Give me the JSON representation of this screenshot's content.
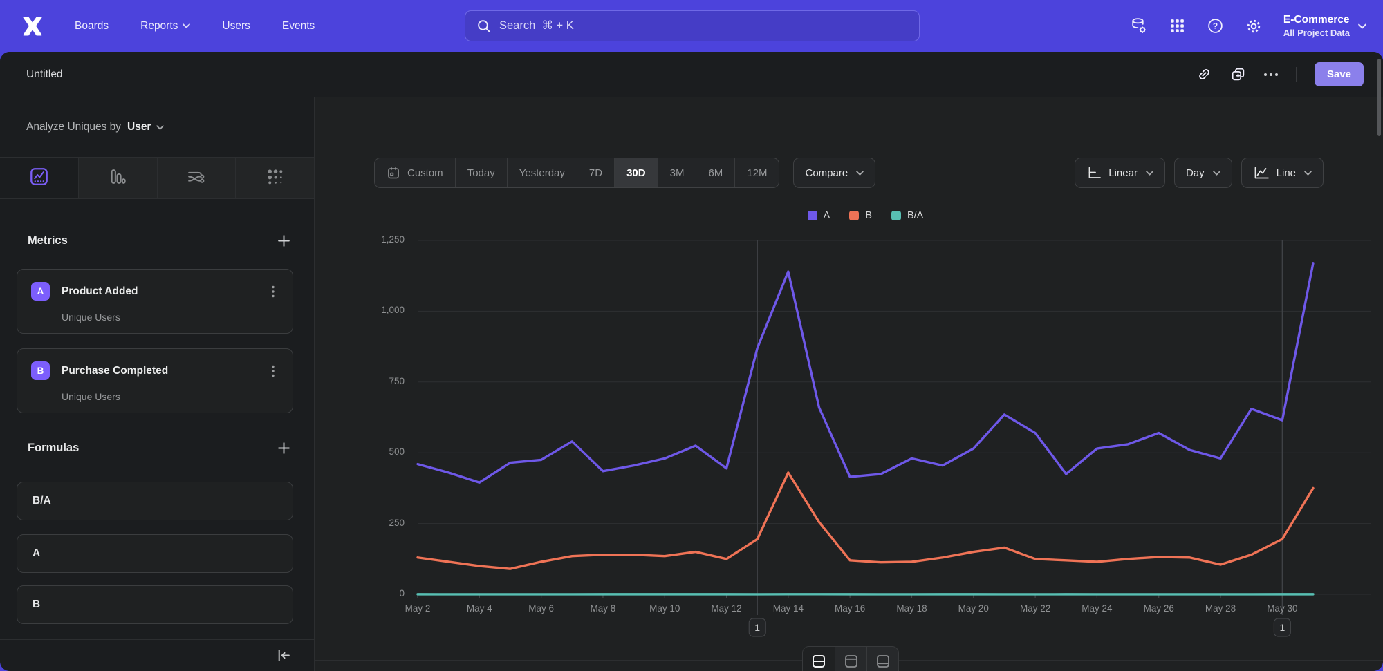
{
  "nav": {
    "items": [
      {
        "label": "Boards"
      },
      {
        "label": "Reports",
        "chevron": true
      },
      {
        "label": "Users"
      },
      {
        "label": "Events"
      }
    ],
    "search": {
      "placeholder": "Search  ⌘ + K"
    },
    "project": {
      "name": "E-Commerce",
      "scope": "All Project Data"
    }
  },
  "header": {
    "title": "Untitled",
    "save_label": "Save"
  },
  "sidebar": {
    "analyze_prefix": "Analyze Uniques by",
    "analyze_value": "User",
    "metrics": {
      "heading": "Metrics",
      "items": [
        {
          "badge": "A",
          "name": "Product Added",
          "measure": "Unique Users"
        },
        {
          "badge": "B",
          "name": "Purchase Completed",
          "measure": "Unique Users"
        }
      ]
    },
    "formulas": {
      "heading": "Formulas",
      "items": [
        "B/A",
        "A",
        "B"
      ]
    }
  },
  "toolbar": {
    "ranges": [
      "Custom",
      "Today",
      "Yesterday",
      "7D",
      "30D",
      "3M",
      "6M",
      "12M"
    ],
    "active_range": "30D",
    "compare": "Compare",
    "scale": "Linear",
    "interval": "Day",
    "chart_type": "Line"
  },
  "colors": {
    "brand_purple": "#4c43dc",
    "accent_purple": "#7c5efc",
    "save_button": "#8b80eb",
    "series_a": "#6e58e8",
    "series_b": "#ef7356",
    "series_ba": "#58bfb3"
  },
  "chart_data": {
    "type": "line",
    "x": [
      "May 2",
      "May 3",
      "May 4",
      "May 5",
      "May 6",
      "May 7",
      "May 8",
      "May 9",
      "May 10",
      "May 11",
      "May 12",
      "May 13",
      "May 14",
      "May 15",
      "May 16",
      "May 17",
      "May 18",
      "May 19",
      "May 20",
      "May 21",
      "May 22",
      "May 23",
      "May 24",
      "May 25",
      "May 26",
      "May 27",
      "May 28",
      "May 29",
      "May 30",
      "May 31"
    ],
    "xticks": [
      "May 2",
      "May 4",
      "May 6",
      "May 8",
      "May 10",
      "May 12",
      "May 14",
      "May 16",
      "May 18",
      "May 20",
      "May 22",
      "May 24",
      "May 26",
      "May 28",
      "May 30"
    ],
    "series": [
      {
        "name": "A",
        "color": "#6e58e8",
        "values": [
          460,
          430,
          395,
          465,
          475,
          540,
          435,
          455,
          480,
          525,
          445,
          870,
          1140,
          660,
          415,
          425,
          480,
          455,
          515,
          635,
          570,
          425,
          515,
          530,
          570,
          510,
          480,
          655,
          615,
          1170
        ]
      },
      {
        "name": "B",
        "color": "#ef7356",
        "values": [
          130,
          115,
          100,
          90,
          115,
          135,
          140,
          140,
          135,
          150,
          125,
          195,
          430,
          255,
          120,
          113,
          115,
          130,
          150,
          165,
          125,
          120,
          115,
          125,
          132,
          130,
          105,
          140,
          195,
          375
        ]
      },
      {
        "name": "B/A",
        "color": "#58bfb3",
        "values": [
          0.28,
          0.27,
          0.25,
          0.19,
          0.24,
          0.25,
          0.32,
          0.31,
          0.28,
          0.29,
          0.28,
          0.22,
          0.38,
          0.39,
          0.29,
          0.27,
          0.24,
          0.29,
          0.29,
          0.26,
          0.22,
          0.28,
          0.22,
          0.24,
          0.23,
          0.25,
          0.22,
          0.21,
          0.32,
          0.32
        ]
      }
    ],
    "ylim": [
      0,
      1250
    ],
    "yticks": [
      0,
      250,
      500,
      750,
      1000,
      1250
    ],
    "ytick_labels": [
      "0",
      "250",
      "500",
      "750",
      "1,000",
      "1,250"
    ],
    "legend_position": "top",
    "grid": "horizontal",
    "annotations": [
      {
        "label": "1",
        "x": "May 13"
      },
      {
        "label": "1",
        "x": "May 30"
      }
    ]
  }
}
